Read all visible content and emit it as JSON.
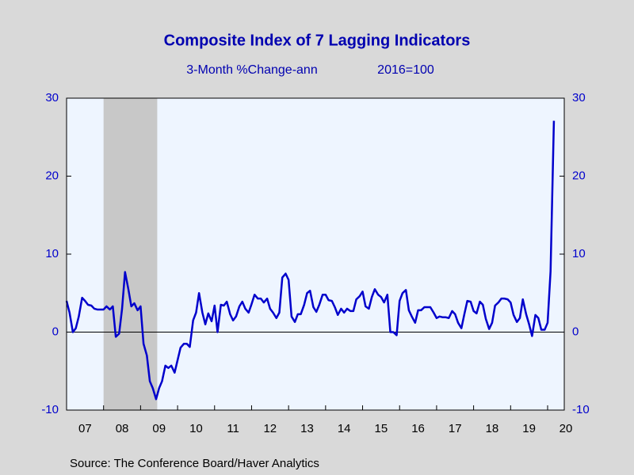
{
  "chart_data": {
    "type": "line",
    "title": "Composite Index of 7 Lagging Indicators",
    "subtitle": "3-Month %Change-ann",
    "subtitle_right": "2016=100",
    "source": "Source:  The Conference Board/Haver Analytics",
    "x": [
      2007.0,
      2007.08,
      2007.17,
      2007.25,
      2007.33,
      2007.42,
      2007.5,
      2007.58,
      2007.67,
      2007.75,
      2007.83,
      2007.92,
      2008.0,
      2008.08,
      2008.17,
      2008.25,
      2008.33,
      2008.42,
      2008.5,
      2008.58,
      2008.67,
      2008.75,
      2008.83,
      2008.92,
      2009.0,
      2009.08,
      2009.17,
      2009.25,
      2009.33,
      2009.42,
      2009.5,
      2009.58,
      2009.67,
      2009.75,
      2009.83,
      2009.92,
      2010.0,
      2010.08,
      2010.17,
      2010.25,
      2010.33,
      2010.42,
      2010.5,
      2010.58,
      2010.67,
      2010.75,
      2010.83,
      2010.92,
      2011.0,
      2011.08,
      2011.17,
      2011.25,
      2011.33,
      2011.42,
      2011.5,
      2011.58,
      2011.67,
      2011.75,
      2011.83,
      2011.92,
      2012.0,
      2012.08,
      2012.17,
      2012.25,
      2012.33,
      2012.42,
      2012.5,
      2012.58,
      2012.67,
      2012.75,
      2012.83,
      2012.92,
      2013.0,
      2013.08,
      2013.17,
      2013.25,
      2013.33,
      2013.42,
      2013.5,
      2013.58,
      2013.67,
      2013.75,
      2013.83,
      2013.92,
      2014.0,
      2014.08,
      2014.17,
      2014.25,
      2014.33,
      2014.42,
      2014.5,
      2014.58,
      2014.67,
      2014.75,
      2014.83,
      2014.92,
      2015.0,
      2015.08,
      2015.17,
      2015.25,
      2015.33,
      2015.42,
      2015.5,
      2015.58,
      2015.67,
      2015.75,
      2015.83,
      2015.92,
      2016.0,
      2016.08,
      2016.17,
      2016.25,
      2016.33,
      2016.42,
      2016.5,
      2016.58,
      2016.67,
      2016.75,
      2016.83,
      2016.92,
      2017.0,
      2017.08,
      2017.17,
      2017.25,
      2017.33,
      2017.42,
      2017.5,
      2017.58,
      2017.67,
      2017.75,
      2017.83,
      2017.92,
      2018.0,
      2018.08,
      2018.17,
      2018.25,
      2018.33,
      2018.42,
      2018.5,
      2018.58,
      2018.67,
      2018.75,
      2018.83,
      2018.92,
      2019.0,
      2019.08,
      2019.17,
      2019.25,
      2019.33,
      2019.42,
      2019.5,
      2019.58,
      2019.67,
      2019.75,
      2019.83,
      2019.92,
      2020.0,
      2020.08,
      2020.17
    ],
    "series": [
      {
        "color": "#0000cc",
        "values": [
          4,
          2.5,
          0,
          0.5,
          2,
          4.4,
          4,
          3.5,
          3.4,
          3,
          2.9,
          2.9,
          2.9,
          3.3,
          2.9,
          3.3,
          -0.6,
          -0.2,
          3,
          7.7,
          5.5,
          3.3,
          3.7,
          2.8,
          3.3,
          -1.5,
          -3,
          -6.3,
          -7.2,
          -8.6,
          -7.2,
          -6.3,
          -4.3,
          -4.6,
          -4.3,
          -5.2,
          -3.6,
          -2,
          -1.5,
          -1.5,
          -1.9,
          1.5,
          2.5,
          5,
          2.5,
          1,
          2.4,
          1.4,
          3.4,
          0,
          3.5,
          3.4,
          3.9,
          2.3,
          1.5,
          2,
          3.3,
          3.9,
          3,
          2.5,
          3.6,
          4.8,
          4.3,
          4.3,
          3.8,
          4.3,
          3,
          2.5,
          1.8,
          2.5,
          7,
          7.5,
          6.7,
          2,
          1.3,
          2.3,
          2.3,
          3.5,
          5,
          5.3,
          3.2,
          2.6,
          3.5,
          4.8,
          4.8,
          4.1,
          4,
          3.2,
          2.2,
          3,
          2.5,
          3,
          2.7,
          2.7,
          4.2,
          4.6,
          5.2,
          3.3,
          3,
          4.5,
          5.5,
          4.8,
          4.5,
          3.8,
          4.8,
          0,
          0,
          -0.4,
          4,
          5,
          5.4,
          2.8,
          2,
          1.2,
          2.8,
          2.8,
          3.2,
          3.2,
          3.2,
          2.5,
          1.8,
          2,
          1.9,
          1.9,
          1.8,
          2.7,
          2.3,
          1.2,
          0.5,
          2.3,
          4,
          3.9,
          2.7,
          2.4,
          3.9,
          3.5,
          1.7,
          0.4,
          1.2,
          3.4,
          3.8,
          4.3,
          4.3,
          4.2,
          3.8,
          2.2,
          1.3,
          1.8,
          4.2,
          2.3,
          1,
          -0.5,
          2.2,
          1.8,
          0.3,
          0.3,
          1.2,
          7.8,
          27.1
        ]
      }
    ],
    "recession": [
      2008.0,
      2009.45
    ],
    "xlim": [
      2007,
      2020.45
    ],
    "xticks": [
      {
        "value": 2007,
        "label": "07"
      },
      {
        "value": 2008,
        "label": "08"
      },
      {
        "value": 2009,
        "label": "09"
      },
      {
        "value": 2010,
        "label": "10"
      },
      {
        "value": 2011,
        "label": "11"
      },
      {
        "value": 2012,
        "label": "12"
      },
      {
        "value": 2013,
        "label": "13"
      },
      {
        "value": 2014,
        "label": "14"
      },
      {
        "value": 2015,
        "label": "15"
      },
      {
        "value": 2016,
        "label": "16"
      },
      {
        "value": 2017,
        "label": "17"
      },
      {
        "value": 2018,
        "label": "18"
      },
      {
        "value": 2019,
        "label": "19"
      },
      {
        "value": 2020,
        "label": "20"
      }
    ],
    "ylim": [
      -10,
      30
    ],
    "yticks": [
      -10,
      0,
      10,
      20,
      30
    ],
    "zero_line": 0
  }
}
